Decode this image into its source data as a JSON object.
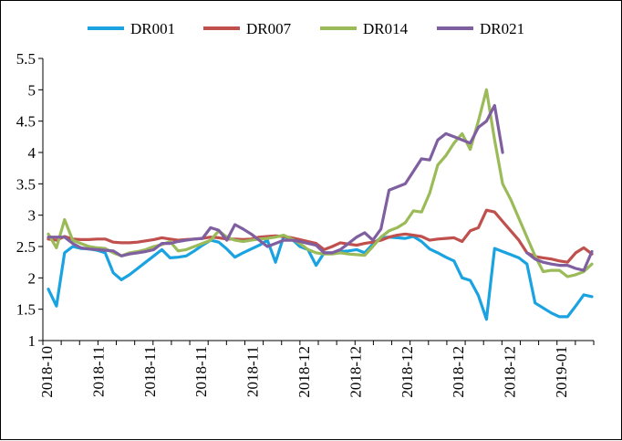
{
  "chart_data": {
    "type": "line",
    "title": "",
    "xlabel": "",
    "ylabel": "",
    "ylim": [
      1,
      5.5
    ],
    "yticks": [
      "1",
      "1.5",
      "2",
      "2.5",
      "3",
      "3.5",
      "4",
      "4.5",
      "5",
      "5.5"
    ],
    "xticks": [
      "2018-10",
      "2018-11",
      "2018-11",
      "2018-11",
      "2018-11",
      "2018-12",
      "2018-12",
      "2018-12",
      "2018-12",
      "2018-12",
      "2019-01"
    ],
    "grid": false,
    "legend_position": "top",
    "series": [
      {
        "name": "DR001",
        "color": "#1aa3e0",
        "values": [
          1.82,
          1.55,
          2.4,
          2.5,
          2.47,
          2.46,
          2.44,
          2.4,
          2.08,
          1.97,
          2.05,
          2.15,
          2.25,
          2.35,
          2.45,
          2.32,
          2.33,
          2.35,
          2.43,
          2.52,
          2.6,
          2.57,
          2.46,
          2.33,
          2.4,
          2.46,
          2.52,
          2.6,
          2.25,
          2.66,
          2.62,
          2.5,
          2.45,
          2.2,
          2.4,
          2.4,
          2.42,
          2.43,
          2.45,
          2.4,
          2.54,
          2.64,
          2.65,
          2.64,
          2.63,
          2.66,
          2.58,
          2.46,
          2.4,
          2.33,
          2.27,
          2.0,
          1.96,
          1.72,
          1.34,
          2.47,
          2.42,
          2.37,
          2.32,
          2.22,
          1.6,
          1.52,
          1.44,
          1.38,
          1.38,
          1.55,
          1.73,
          1.7
        ]
      },
      {
        "name": "DR007",
        "color": "#c0504d",
        "values": [
          2.62,
          2.6,
          2.66,
          2.62,
          2.61,
          2.61,
          2.62,
          2.62,
          2.57,
          2.56,
          2.56,
          2.57,
          2.59,
          2.61,
          2.64,
          2.62,
          2.6,
          2.61,
          2.62,
          2.63,
          2.65,
          2.64,
          2.62,
          2.62,
          2.61,
          2.62,
          2.65,
          2.66,
          2.67,
          2.66,
          2.64,
          2.61,
          2.58,
          2.55,
          2.45,
          2.5,
          2.56,
          2.54,
          2.52,
          2.55,
          2.57,
          2.6,
          2.65,
          2.68,
          2.7,
          2.68,
          2.66,
          2.6,
          2.62,
          2.63,
          2.64,
          2.58,
          2.75,
          2.8,
          3.08,
          3.05,
          2.9,
          2.75,
          2.6,
          2.4,
          2.34,
          2.32,
          2.3,
          2.27,
          2.25,
          2.4,
          2.48,
          2.38
        ]
      },
      {
        "name": "DR014",
        "color": "#9bbb59",
        "values": [
          2.7,
          2.48,
          2.93,
          2.6,
          2.55,
          2.5,
          2.48,
          2.47,
          2.4,
          2.35,
          2.4,
          2.42,
          2.45,
          2.5,
          2.53,
          2.58,
          2.43,
          2.45,
          2.5,
          2.55,
          2.6,
          2.75,
          2.65,
          2.6,
          2.58,
          2.6,
          2.62,
          2.63,
          2.65,
          2.68,
          2.62,
          2.55,
          2.45,
          2.4,
          2.38,
          2.38,
          2.4,
          2.38,
          2.37,
          2.36,
          2.5,
          2.65,
          2.75,
          2.8,
          2.88,
          3.07,
          3.05,
          3.35,
          3.8,
          3.95,
          4.15,
          4.3,
          4.05,
          4.5,
          5.0,
          4.2,
          3.5,
          3.25,
          2.95,
          2.65,
          2.35,
          2.1,
          2.12,
          2.12,
          2.02,
          2.05,
          2.1,
          2.22
        ]
      },
      {
        "name": "DR021",
        "color": "#7f5fa0",
        "values": [
          2.65,
          2.65,
          2.65,
          2.55,
          2.48,
          2.46,
          2.45,
          2.44,
          2.43,
          2.35,
          2.38,
          2.4,
          2.42,
          2.45,
          2.55,
          2.55,
          2.58,
          2.6,
          2.62,
          2.63,
          2.8,
          2.76,
          2.6,
          2.85,
          2.78,
          2.7,
          2.6,
          2.5,
          2.55,
          2.6,
          2.6,
          2.58,
          2.55,
          2.52,
          2.4,
          2.4,
          2.45,
          2.55,
          2.65,
          2.72,
          2.6,
          2.78,
          3.4,
          3.45,
          3.5,
          3.7,
          3.9,
          3.88,
          4.2,
          4.3,
          4.25,
          4.2,
          4.15,
          4.4,
          4.5,
          4.75,
          4.0,
          null,
          null,
          2.4,
          2.3,
          2.25,
          2.22,
          2.2,
          2.2,
          2.15,
          2.12,
          2.42
        ]
      }
    ]
  }
}
